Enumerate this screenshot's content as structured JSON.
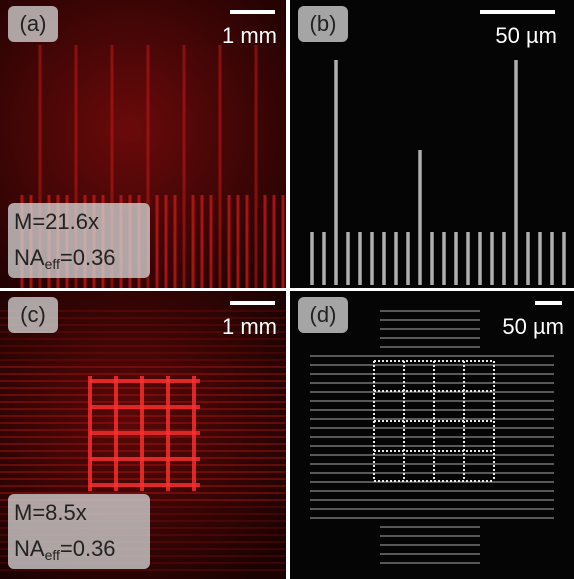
{
  "panels": [
    {
      "label": "(a)",
      "scale_bar": "1 mm",
      "annotation": {
        "line1": "M=21.6x",
        "line2": {
          "main": "NA",
          "sub": "eff",
          "rest": "=0.36"
        }
      }
    },
    {
      "label": "(b)",
      "scale_bar": "50 µm"
    },
    {
      "label": "(c)",
      "scale_bar": "1 mm",
      "annotation": {
        "line1": "M=8.5x",
        "line2": {
          "main": "NA",
          "sub": "eff",
          "rest": "=0.36"
        }
      }
    },
    {
      "label": "(d)",
      "scale_bar": "50 µm"
    }
  ]
}
